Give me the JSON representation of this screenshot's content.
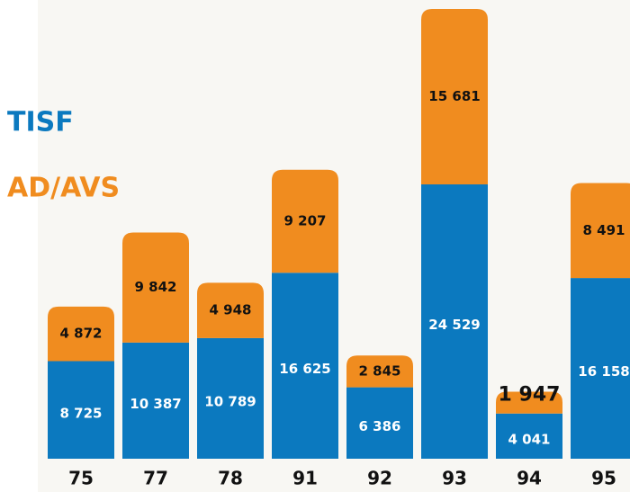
{
  "chart_data": {
    "type": "stacked_bar",
    "categories": [
      "75",
      "77",
      "78",
      "91",
      "92",
      "93",
      "94",
      "95"
    ],
    "series": [
      {
        "name": "TISF",
        "color": "#0b79bf",
        "values": [
          8725,
          10387,
          10789,
          16625,
          6386,
          24529,
          4041,
          16158
        ],
        "value_labels": [
          "8 725",
          "10 387",
          "10 789",
          "16 625",
          "6 386",
          "24 529",
          "4 041",
          "16 158"
        ]
      },
      {
        "name": "AD/AVS",
        "color": "#f08c1f",
        "values": [
          4872,
          9842,
          4948,
          9207,
          2845,
          15681,
          1947,
          8491
        ],
        "value_labels": [
          "4 872",
          "9 842",
          "4 948",
          "9 207",
          "2 845",
          "15 681",
          "1 947",
          "8 491"
        ]
      }
    ]
  }
}
